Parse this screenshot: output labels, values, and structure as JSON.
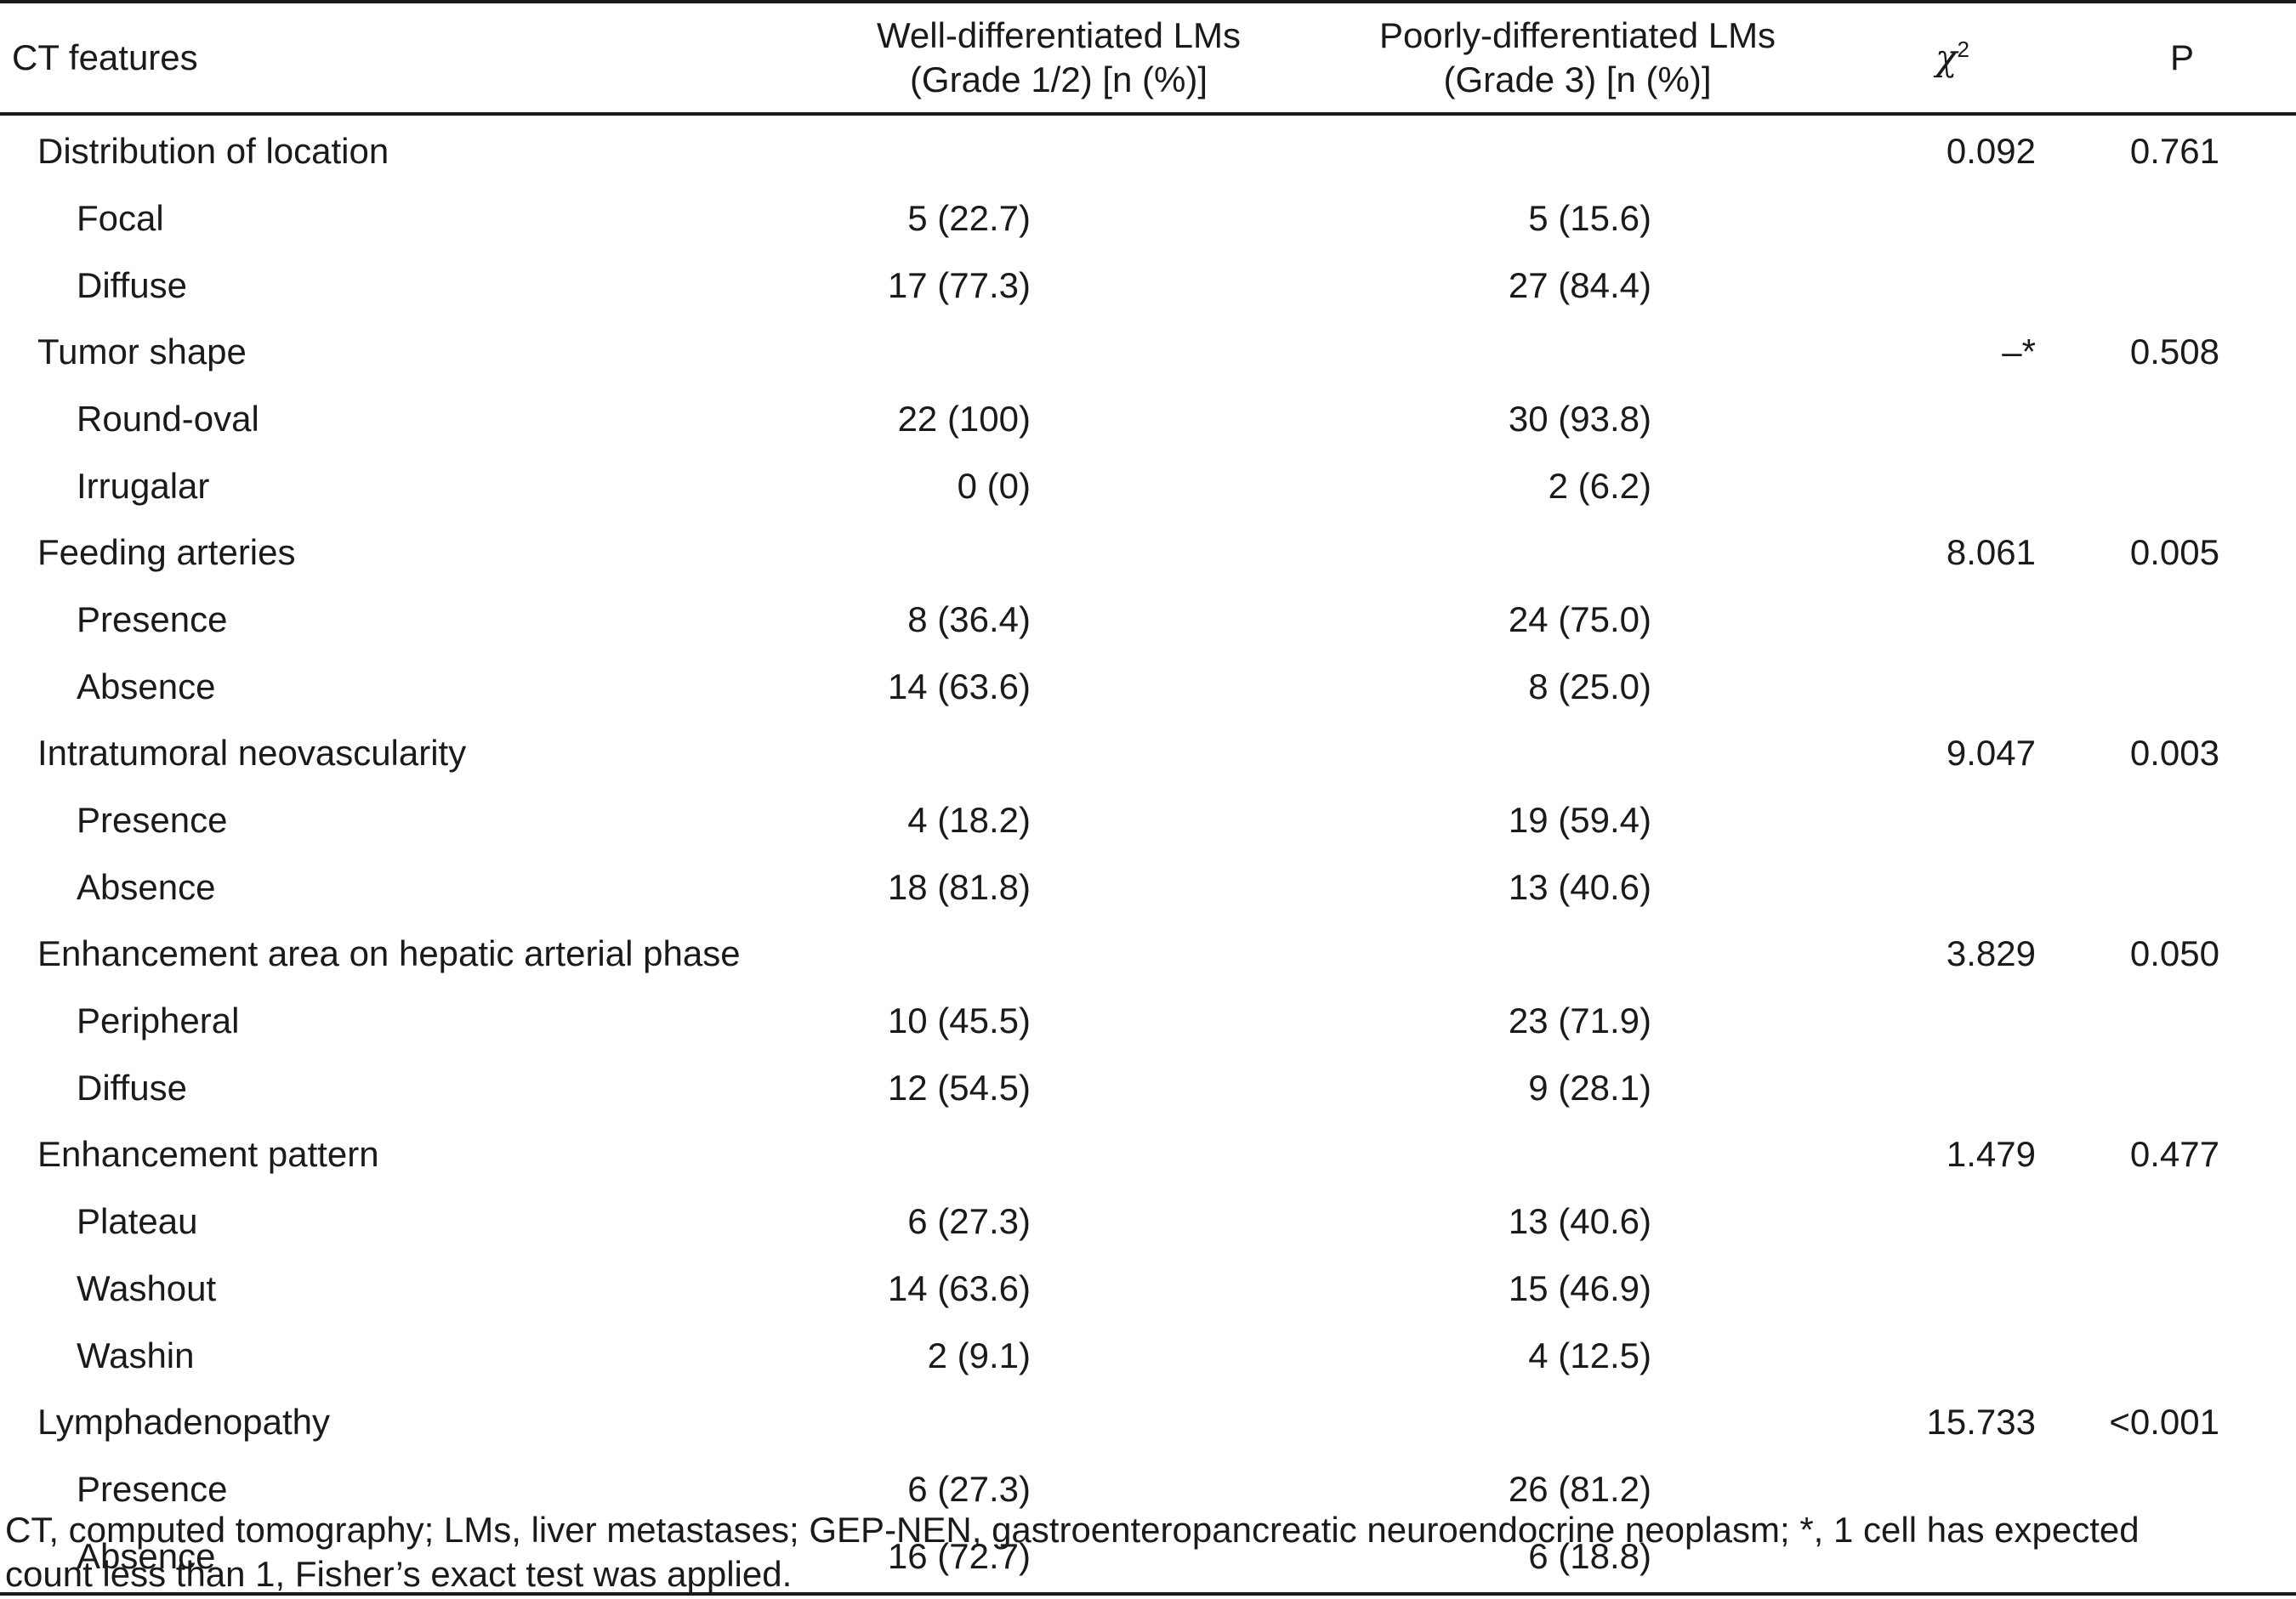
{
  "header": {
    "col1": "CT features",
    "col2_line1": "Well-differentiated LMs",
    "col2_line2": "(Grade 1/2) [n (%)]",
    "col3_line1": "Poorly-differentiated LMs",
    "col3_line2": "(Grade 3) [n (%)]",
    "col4_symbol": "χ",
    "col4_sup": "2",
    "col5": "P"
  },
  "rows": [
    {
      "label": "Distribution of location",
      "well": "",
      "poor": "",
      "chi2": "0.092",
      "p": "0.761"
    },
    {
      "label": "Focal",
      "well": "5 (22.7)",
      "poor": "5 (15.6)",
      "chi2": "",
      "p": ""
    },
    {
      "label": "Diffuse",
      "well": "17 (77.3)",
      "poor": "27 (84.4)",
      "chi2": "",
      "p": ""
    },
    {
      "label": "Tumor shape",
      "well": "",
      "poor": "",
      "chi2": "–*",
      "p": "0.508"
    },
    {
      "label": "Round-oval",
      "well": "22 (100)",
      "poor": "30 (93.8)",
      "chi2": "",
      "p": ""
    },
    {
      "label": "Irrugalar",
      "well": "0 (0)",
      "poor": "2 (6.2)",
      "chi2": "",
      "p": ""
    },
    {
      "label": "Feeding arteries",
      "well": "",
      "poor": "",
      "chi2": "8.061",
      "p": "0.005"
    },
    {
      "label": "Presence",
      "well": "8 (36.4)",
      "poor": "24 (75.0)",
      "chi2": "",
      "p": ""
    },
    {
      "label": "Absence",
      "well": "14 (63.6)",
      "poor": "8 (25.0)",
      "chi2": "",
      "p": ""
    },
    {
      "label": "Intratumoral neovascularity",
      "well": "",
      "poor": "",
      "chi2": "9.047",
      "p": "0.003"
    },
    {
      "label": "Presence",
      "well": "4 (18.2)",
      "poor": "19 (59.4)",
      "chi2": "",
      "p": ""
    },
    {
      "label": "Absence",
      "well": "18 (81.8)",
      "poor": "13 (40.6)",
      "chi2": "",
      "p": ""
    },
    {
      "label": "Enhancement area on hepatic arterial phase",
      "well": "",
      "poor": "",
      "chi2": "3.829",
      "p": "0.050"
    },
    {
      "label": "Peripheral",
      "well": "10 (45.5)",
      "poor": "23 (71.9)",
      "chi2": "",
      "p": ""
    },
    {
      "label": "Diffuse",
      "well": "12 (54.5)",
      "poor": "9 (28.1)",
      "chi2": "",
      "p": ""
    },
    {
      "label": "Enhancement pattern",
      "well": "",
      "poor": "",
      "chi2": "1.479",
      "p": "0.477"
    },
    {
      "label": "Plateau",
      "well": "6 (27.3)",
      "poor": "13 (40.6)",
      "chi2": "",
      "p": ""
    },
    {
      "label": "Washout",
      "well": "14 (63.6)",
      "poor": "15 (46.9)",
      "chi2": "",
      "p": ""
    },
    {
      "label": "Washin",
      "well": "2 (9.1)",
      "poor": "4 (12.5)",
      "chi2": "",
      "p": ""
    },
    {
      "label": "Lymphadenopathy",
      "well": "",
      "poor": "",
      "chi2": "15.733",
      "p": "<0.001"
    },
    {
      "label": "Presence",
      "well": "6 (27.3)",
      "poor": "26 (81.2)",
      "chi2": "",
      "p": ""
    },
    {
      "label": "Absence",
      "well": "16 (72.7)",
      "poor": "6 (18.8)",
      "chi2": "",
      "p": ""
    }
  ],
  "footnote": {
    "line1": "CT, computed tomography; LMs, liver metastases; GEP-NEN, gastroenteropancreatic neuroendocrine neoplasm; *, 1 cell has expected",
    "line2": "count less than 1, Fisher’s exact test was applied."
  }
}
